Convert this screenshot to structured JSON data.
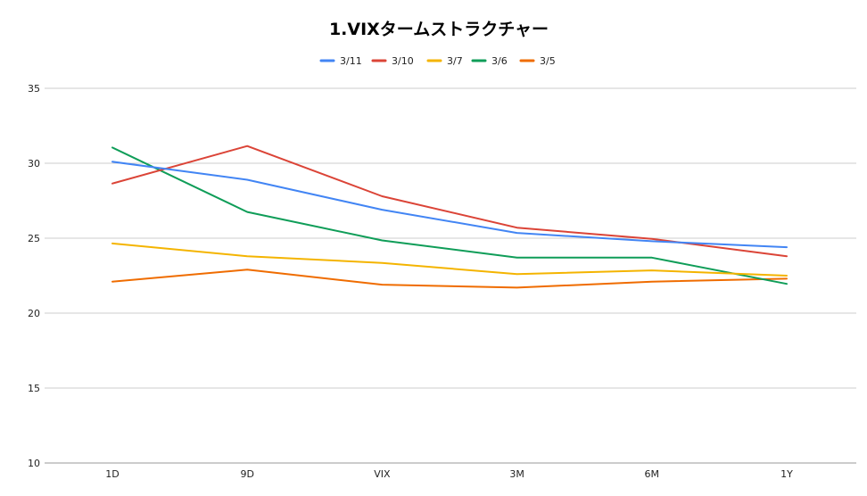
{
  "chart_data": {
    "type": "line",
    "title": "1.VIXタームストラクチャー",
    "xlabel": "",
    "ylabel": "",
    "categories": [
      "1D",
      "9D",
      "VIX",
      "3M",
      "6M",
      "1Y"
    ],
    "ylim": [
      10,
      35
    ],
    "yticks": [
      10,
      15,
      20,
      25,
      30,
      35
    ],
    "grid": true,
    "legend_position": "top",
    "series": [
      {
        "name": "3/11",
        "color": "#4285F4",
        "values": [
          30.1,
          28.9,
          26.9,
          25.35,
          24.8,
          24.4
        ]
      },
      {
        "name": "3/10",
        "color": "#DB4437",
        "values": [
          28.65,
          31.15,
          27.8,
          25.7,
          24.95,
          23.8
        ]
      },
      {
        "name": "3/7",
        "color": "#F4B400",
        "values": [
          24.65,
          23.8,
          23.35,
          22.6,
          22.85,
          22.5
        ]
      },
      {
        "name": "3/6",
        "color": "#0F9D58",
        "values": [
          31.05,
          26.75,
          24.85,
          23.7,
          23.7,
          21.95
        ]
      },
      {
        "name": "3/5",
        "color": "#EF6C00",
        "values": [
          22.1,
          22.9,
          21.9,
          21.7,
          22.1,
          22.3
        ]
      }
    ]
  }
}
